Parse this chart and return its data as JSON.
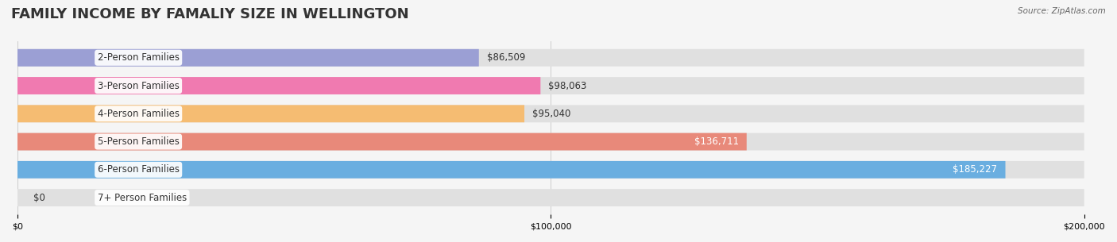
{
  "title": "FAMILY INCOME BY FAMALIY SIZE IN WELLINGTON",
  "source": "Source: ZipAtlas.com",
  "categories": [
    "2-Person Families",
    "3-Person Families",
    "4-Person Families",
    "5-Person Families",
    "6-Person Families",
    "7+ Person Families"
  ],
  "values": [
    86509,
    98063,
    95040,
    136711,
    185227,
    0
  ],
  "bar_colors": [
    "#9b9fd4",
    "#f07ab0",
    "#f5bc72",
    "#e8897a",
    "#6aaee0",
    "#c5aee0"
  ],
  "label_colors": [
    "#333333",
    "#333333",
    "#333333",
    "#ffffff",
    "#ffffff",
    "#333333"
  ],
  "background_color": "#f5f5f5",
  "bar_bg_color": "#e8e8e8",
  "xlim": [
    0,
    200000
  ],
  "xticks": [
    0,
    100000,
    200000
  ],
  "xtick_labels": [
    "$0",
    "$100,000",
    "$200,000"
  ],
  "value_labels": [
    "$86,509",
    "$98,063",
    "$95,040",
    "$136,711",
    "$185,227",
    "$0"
  ],
  "title_fontsize": 13,
  "label_fontsize": 8.5,
  "value_fontsize": 8.5,
  "bar_height": 0.62,
  "figsize": [
    14.06,
    3.05
  ]
}
